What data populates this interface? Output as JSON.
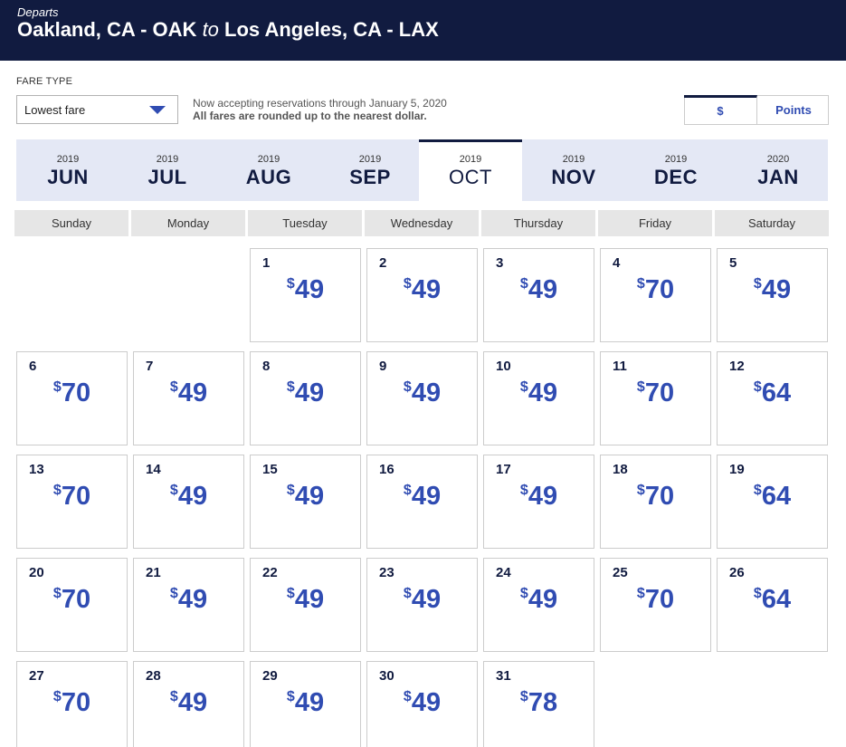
{
  "header": {
    "departs_label": "Departs",
    "origin": "Oakland, CA - OAK",
    "to": "to",
    "destination": "Los Angeles, CA - LAX"
  },
  "fare_type": {
    "label": "FARE TYPE",
    "selected": "Lowest fare"
  },
  "notice": {
    "line1": "Now accepting reservations through January 5, 2020",
    "line2": "All fares are rounded up to the nearest dollar."
  },
  "currency_toggle": {
    "dollar": "$",
    "points": "Points",
    "selected": "$"
  },
  "months": [
    {
      "year": "2019",
      "month": "JUN"
    },
    {
      "year": "2019",
      "month": "JUL"
    },
    {
      "year": "2019",
      "month": "AUG"
    },
    {
      "year": "2019",
      "month": "SEP"
    },
    {
      "year": "2019",
      "month": "OCT",
      "active": true
    },
    {
      "year": "2019",
      "month": "NOV"
    },
    {
      "year": "2019",
      "month": "DEC"
    },
    {
      "year": "2020",
      "month": "JAN"
    }
  ],
  "weekdays": [
    "Sunday",
    "Monday",
    "Tuesday",
    "Wednesday",
    "Thursday",
    "Friday",
    "Saturday"
  ],
  "currency_symbol": "$",
  "days": [
    {
      "day": "1",
      "price": "49"
    },
    {
      "day": "2",
      "price": "49"
    },
    {
      "day": "3",
      "price": "49"
    },
    {
      "day": "4",
      "price": "70"
    },
    {
      "day": "5",
      "price": "49"
    },
    {
      "day": "6",
      "price": "70"
    },
    {
      "day": "7",
      "price": "49"
    },
    {
      "day": "8",
      "price": "49"
    },
    {
      "day": "9",
      "price": "49"
    },
    {
      "day": "10",
      "price": "49"
    },
    {
      "day": "11",
      "price": "70"
    },
    {
      "day": "12",
      "price": "64"
    },
    {
      "day": "13",
      "price": "70"
    },
    {
      "day": "14",
      "price": "49"
    },
    {
      "day": "15",
      "price": "49"
    },
    {
      "day": "16",
      "price": "49"
    },
    {
      "day": "17",
      "price": "49"
    },
    {
      "day": "18",
      "price": "70"
    },
    {
      "day": "19",
      "price": "64"
    },
    {
      "day": "20",
      "price": "70"
    },
    {
      "day": "21",
      "price": "49"
    },
    {
      "day": "22",
      "price": "49"
    },
    {
      "day": "23",
      "price": "49"
    },
    {
      "day": "24",
      "price": "49"
    },
    {
      "day": "25",
      "price": "70"
    },
    {
      "day": "26",
      "price": "64"
    },
    {
      "day": "27",
      "price": "70"
    },
    {
      "day": "28",
      "price": "49"
    },
    {
      "day": "29",
      "price": "49"
    },
    {
      "day": "30",
      "price": "49"
    },
    {
      "day": "31",
      "price": "78"
    }
  ]
}
